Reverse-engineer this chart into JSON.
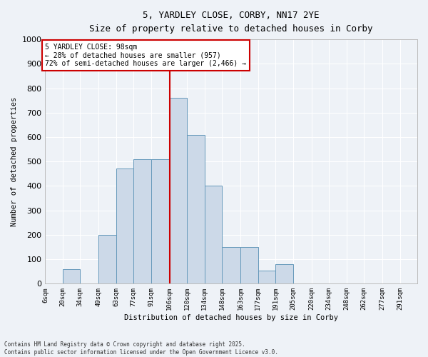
{
  "title": "5, YARDLEY CLOSE, CORBY, NN17 2YE",
  "subtitle": "Size of property relative to detached houses in Corby",
  "xlabel": "Distribution of detached houses by size in Corby",
  "ylabel": "Number of detached properties",
  "footer_line1": "Contains HM Land Registry data © Crown copyright and database right 2025.",
  "footer_line2": "Contains public sector information licensed under the Open Government Licence v3.0.",
  "bin_labels": [
    "6sqm",
    "20sqm",
    "34sqm",
    "49sqm",
    "63sqm",
    "77sqm",
    "91sqm",
    "106sqm",
    "120sqm",
    "134sqm",
    "148sqm",
    "163sqm",
    "177sqm",
    "191sqm",
    "205sqm",
    "220sqm",
    "234sqm",
    "248sqm",
    "262sqm",
    "277sqm",
    "291sqm"
  ],
  "bar_values": [
    0,
    60,
    0,
    200,
    470,
    510,
    510,
    760,
    610,
    400,
    150,
    150,
    55,
    80,
    0,
    0,
    0,
    0,
    0,
    0,
    0
  ],
  "bar_color": "#ccd9e8",
  "bar_edge_color": "#6699bb",
  "vline_x_index": 7,
  "vline_color": "#cc0000",
  "ylim": [
    0,
    1000
  ],
  "yticks": [
    0,
    100,
    200,
    300,
    400,
    500,
    600,
    700,
    800,
    900,
    1000
  ],
  "annotation_title": "5 YARDLEY CLOSE: 98sqm",
  "annotation_line1": "← 28% of detached houses are smaller (957)",
  "annotation_line2": "72% of semi-detached houses are larger (2,466) →",
  "annotation_box_color": "#ffffff",
  "annotation_box_edge": "#cc0000",
  "background_color": "#eef2f7",
  "grid_color": "#ffffff",
  "bin_edges": [
    6,
    20,
    34,
    49,
    63,
    77,
    91,
    106,
    120,
    134,
    148,
    163,
    177,
    191,
    205,
    220,
    234,
    248,
    262,
    277,
    291,
    305
  ]
}
